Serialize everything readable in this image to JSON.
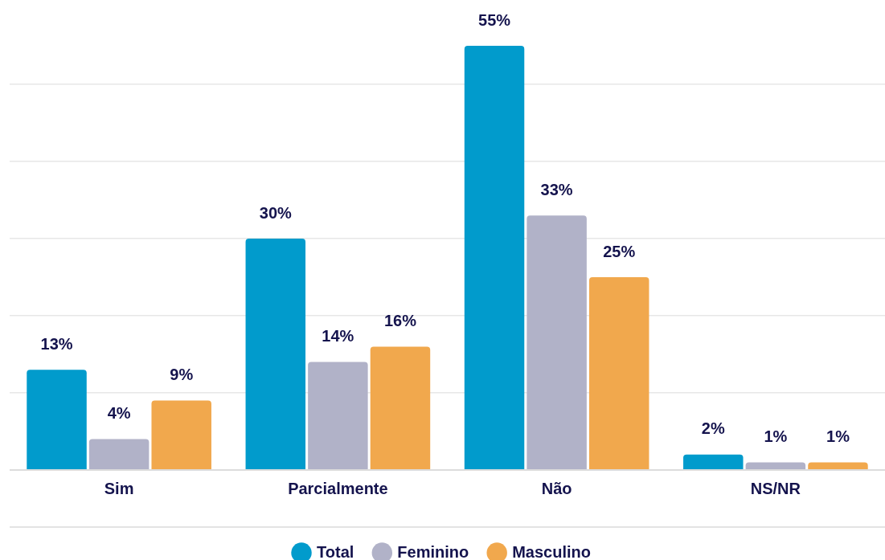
{
  "chart_data": {
    "type": "bar",
    "categories": [
      "Sim",
      "Parcialmente",
      "Não",
      "NS/NR"
    ],
    "series": [
      {
        "name": "Total",
        "color": "#019bcc",
        "values": [
          13,
          30,
          55,
          2
        ],
        "value_labels": [
          "13%",
          "30%",
          "55%",
          "2%"
        ]
      },
      {
        "name": "Feminino",
        "color": "#b1b2c8",
        "values": [
          4,
          14,
          33,
          1
        ],
        "value_labels": [
          "4%",
          "14%",
          "33%",
          "1%"
        ]
      },
      {
        "name": "Masculino",
        "color": "#f1a84d",
        "values": [
          9,
          16,
          25,
          1
        ],
        "value_labels": [
          "9%",
          "16%",
          "25%",
          "1%"
        ]
      }
    ],
    "yticks": [
      {
        "value": 0,
        "label": null
      },
      {
        "value": 10,
        "label": null
      },
      {
        "value": 20,
        "label": null
      },
      {
        "value": 30,
        "label": null
      },
      {
        "value": 40,
        "label": null
      },
      {
        "value": 50,
        "label": null
      }
    ],
    "grid": "y",
    "legend": "bottom",
    "tick_labels": "x"
  }
}
